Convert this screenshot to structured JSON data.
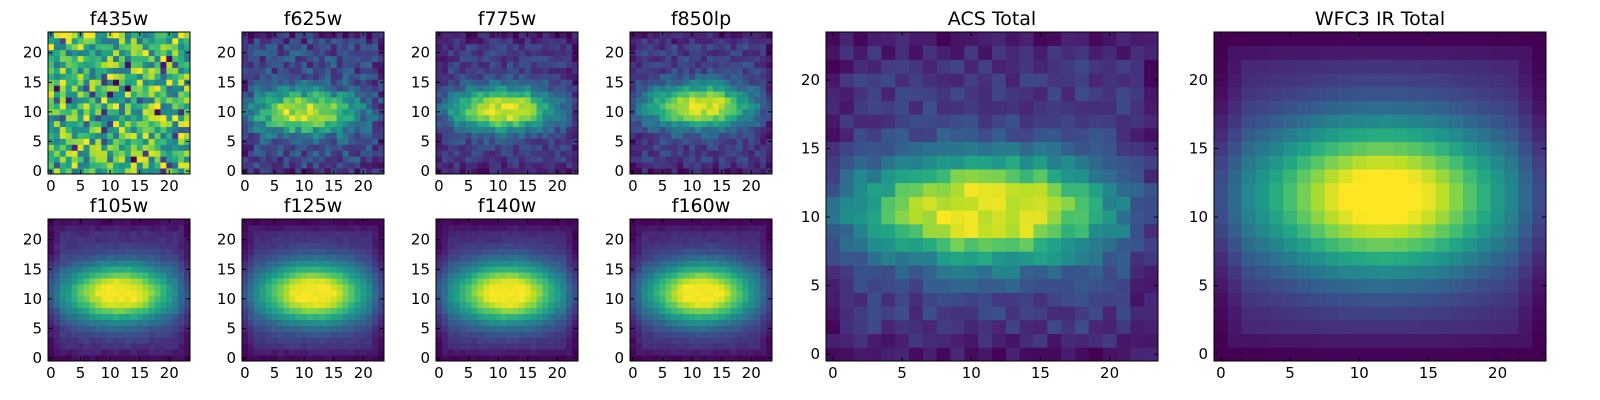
{
  "chart_data": [
    {
      "type": "heatmap",
      "title": "f435w",
      "grid": 24,
      "xlim": [
        -0.5,
        23.5
      ],
      "ylim": [
        -0.5,
        23.5
      ],
      "xticks": [
        0,
        5,
        10,
        15,
        20
      ],
      "yticks": [
        0,
        5,
        10,
        15,
        20
      ],
      "colormap": "viridis",
      "source": {
        "kind": "noise",
        "base": 0.75,
        "amp": 0.0,
        "noise": 0.35,
        "seed": 3
      }
    },
    {
      "type": "heatmap",
      "title": "f625w",
      "grid": 24,
      "xlim": [
        -0.5,
        23.5
      ],
      "ylim": [
        -0.5,
        23.5
      ],
      "xticks": [
        0,
        5,
        10,
        15,
        20
      ],
      "yticks": [
        0,
        5,
        10,
        15,
        20
      ],
      "colormap": "viridis",
      "source": {
        "kind": "gauss",
        "cx": 11,
        "cy": 10,
        "sx": 5.5,
        "sy": 2.5,
        "tail": 0.25,
        "bg": 0.25,
        "noise": 0.16,
        "seed": 5
      }
    },
    {
      "type": "heatmap",
      "title": "f775w",
      "grid": 24,
      "xlim": [
        -0.5,
        23.5
      ],
      "ylim": [
        -0.5,
        23.5
      ],
      "xticks": [
        0,
        5,
        10,
        15,
        20
      ],
      "yticks": [
        0,
        5,
        10,
        15,
        20
      ],
      "colormap": "viridis",
      "source": {
        "kind": "gauss",
        "cx": 11.5,
        "cy": 10.5,
        "sx": 5.5,
        "sy": 2.5,
        "tail": 0.25,
        "bg": 0.15,
        "noise": 0.1,
        "seed": 7
      }
    },
    {
      "type": "heatmap",
      "title": "f850lp",
      "grid": 24,
      "xlim": [
        -0.5,
        23.5
      ],
      "ylim": [
        -0.5,
        23.5
      ],
      "xticks": [
        0,
        5,
        10,
        15,
        20
      ],
      "yticks": [
        0,
        5,
        10,
        15,
        20
      ],
      "colormap": "viridis",
      "source": {
        "kind": "gauss",
        "cx": 12,
        "cy": 11,
        "sx": 5.5,
        "sy": 2.5,
        "tail": 0.25,
        "bg": 0.18,
        "noise": 0.1,
        "seed": 9
      }
    },
    {
      "type": "heatmap",
      "title": "f105w",
      "grid": 24,
      "xlim": [
        -0.5,
        23.5
      ],
      "ylim": [
        -0.5,
        23.5
      ],
      "xticks": [
        0,
        5,
        10,
        15,
        20
      ],
      "yticks": [
        0,
        5,
        10,
        15,
        20
      ],
      "colormap": "viridis",
      "source": {
        "kind": "gauss",
        "cx": 12,
        "cy": 11,
        "sx": 6.5,
        "sy": 3.5,
        "tail": 0.15,
        "bg": 0.1,
        "noise": 0.03,
        "seed": 11
      }
    },
    {
      "type": "heatmap",
      "title": "f125w",
      "grid": 24,
      "xlim": [
        -0.5,
        23.5
      ],
      "ylim": [
        -0.5,
        23.5
      ],
      "xticks": [
        0,
        5,
        10,
        15,
        20
      ],
      "yticks": [
        0,
        5,
        10,
        15,
        20
      ],
      "colormap": "viridis",
      "source": {
        "kind": "gauss",
        "cx": 12,
        "cy": 11,
        "sx": 6.5,
        "sy": 3.7,
        "tail": 0.15,
        "bg": 0.08,
        "noise": 0.02,
        "seed": 13
      }
    },
    {
      "type": "heatmap",
      "title": "f140w",
      "grid": 24,
      "xlim": [
        -0.5,
        23.5
      ],
      "ylim": [
        -0.5,
        23.5
      ],
      "xticks": [
        0,
        5,
        10,
        15,
        20
      ],
      "yticks": [
        0,
        5,
        10,
        15,
        20
      ],
      "colormap": "viridis",
      "source": {
        "kind": "gauss",
        "cx": 12,
        "cy": 11,
        "sx": 6.5,
        "sy": 3.7,
        "tail": 0.15,
        "bg": 0.08,
        "noise": 0.02,
        "seed": 17
      }
    },
    {
      "type": "heatmap",
      "title": "f160w",
      "grid": 24,
      "xlim": [
        -0.5,
        23.5
      ],
      "ylim": [
        -0.5,
        23.5
      ],
      "xticks": [
        0,
        5,
        10,
        15,
        20
      ],
      "yticks": [
        0,
        5,
        10,
        15,
        20
      ],
      "colormap": "viridis",
      "source": {
        "kind": "gauss",
        "cx": 12,
        "cy": 11,
        "sx": 6.3,
        "sy": 3.6,
        "tail": 0.15,
        "bg": 0.06,
        "noise": 0.02,
        "seed": 19
      }
    },
    {
      "type": "heatmap",
      "title": "ACS Total",
      "grid": 24,
      "xlim": [
        -0.5,
        23.5
      ],
      "ylim": [
        -0.5,
        23.5
      ],
      "xticks": [
        0,
        5,
        10,
        15,
        20
      ],
      "yticks": [
        0,
        5,
        10,
        15,
        20
      ],
      "colormap": "viridis",
      "source": {
        "kind": "gauss",
        "cx": 12,
        "cy": 10.5,
        "sx": 5.8,
        "sy": 2.7,
        "tail": 0.3,
        "bg": 0.2,
        "noise": 0.07,
        "seed": 23
      }
    },
    {
      "type": "heatmap",
      "title": "WFC3 IR Total",
      "grid": 24,
      "xlim": [
        -0.5,
        23.5
      ],
      "ylim": [
        -0.5,
        23.5
      ],
      "xticks": [
        0,
        5,
        10,
        15,
        20
      ],
      "yticks": [
        0,
        5,
        10,
        15,
        20
      ],
      "colormap": "viridis",
      "source": {
        "kind": "gauss",
        "cx": 12,
        "cy": 11.5,
        "sx": 6.5,
        "sy": 4.0,
        "tail": 0.12,
        "bg": 0.05,
        "noise": 0.0,
        "seed": 29
      }
    }
  ]
}
